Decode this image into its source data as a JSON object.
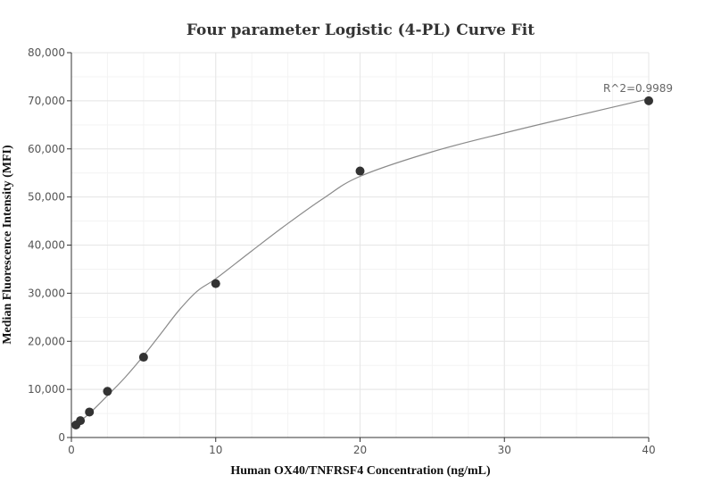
{
  "chart_data": {
    "type": "scatter",
    "title": "Four parameter Logistic (4-PL) Curve Fit",
    "xlabel": "Human OX40/TNFRSF4 Concentration (ng/mL)",
    "ylabel": "Median Fluorescence Intensity (MFI)",
    "xlim": [
      0,
      40
    ],
    "ylim": [
      0,
      80000
    ],
    "x_ticks": [
      0,
      10,
      20,
      30,
      40
    ],
    "y_ticks": [
      0,
      10000,
      20000,
      30000,
      40000,
      50000,
      60000,
      70000,
      80000
    ],
    "x_tick_labels": [
      "0",
      "10",
      "20",
      "30",
      "40"
    ],
    "y_tick_labels": [
      "0",
      "10,000",
      "20,000",
      "30,000",
      "40,000",
      "50,000",
      "60,000",
      "70,000",
      "80,000"
    ],
    "grid": true,
    "series": [
      {
        "type": "scatter",
        "x": [
          0.3125,
          0.625,
          1.25,
          2.5,
          5,
          10,
          20,
          40
        ],
        "y": [
          2600,
          3500,
          5300,
          9600,
          16700,
          32000,
          55400,
          70000
        ]
      },
      {
        "type": "line",
        "x": [
          0,
          0.625,
          1.25,
          2.5,
          3.75,
          5,
          6.25,
          7.5,
          8.75,
          10,
          12.5,
          15,
          17.5,
          20,
          25,
          30,
          35,
          40
        ],
        "y": [
          2300,
          3500,
          5000,
          8700,
          12600,
          17000,
          21800,
          26600,
          30500,
          33000,
          38800,
          44500,
          49800,
          54300,
          59400,
          63300,
          66900,
          70400
        ]
      }
    ],
    "annotations": [
      {
        "text": "R^2=0.9989",
        "x": 40,
        "y": 70000
      }
    ],
    "colors": {
      "points": "#333333",
      "curve": "#8a8a8a"
    }
  }
}
